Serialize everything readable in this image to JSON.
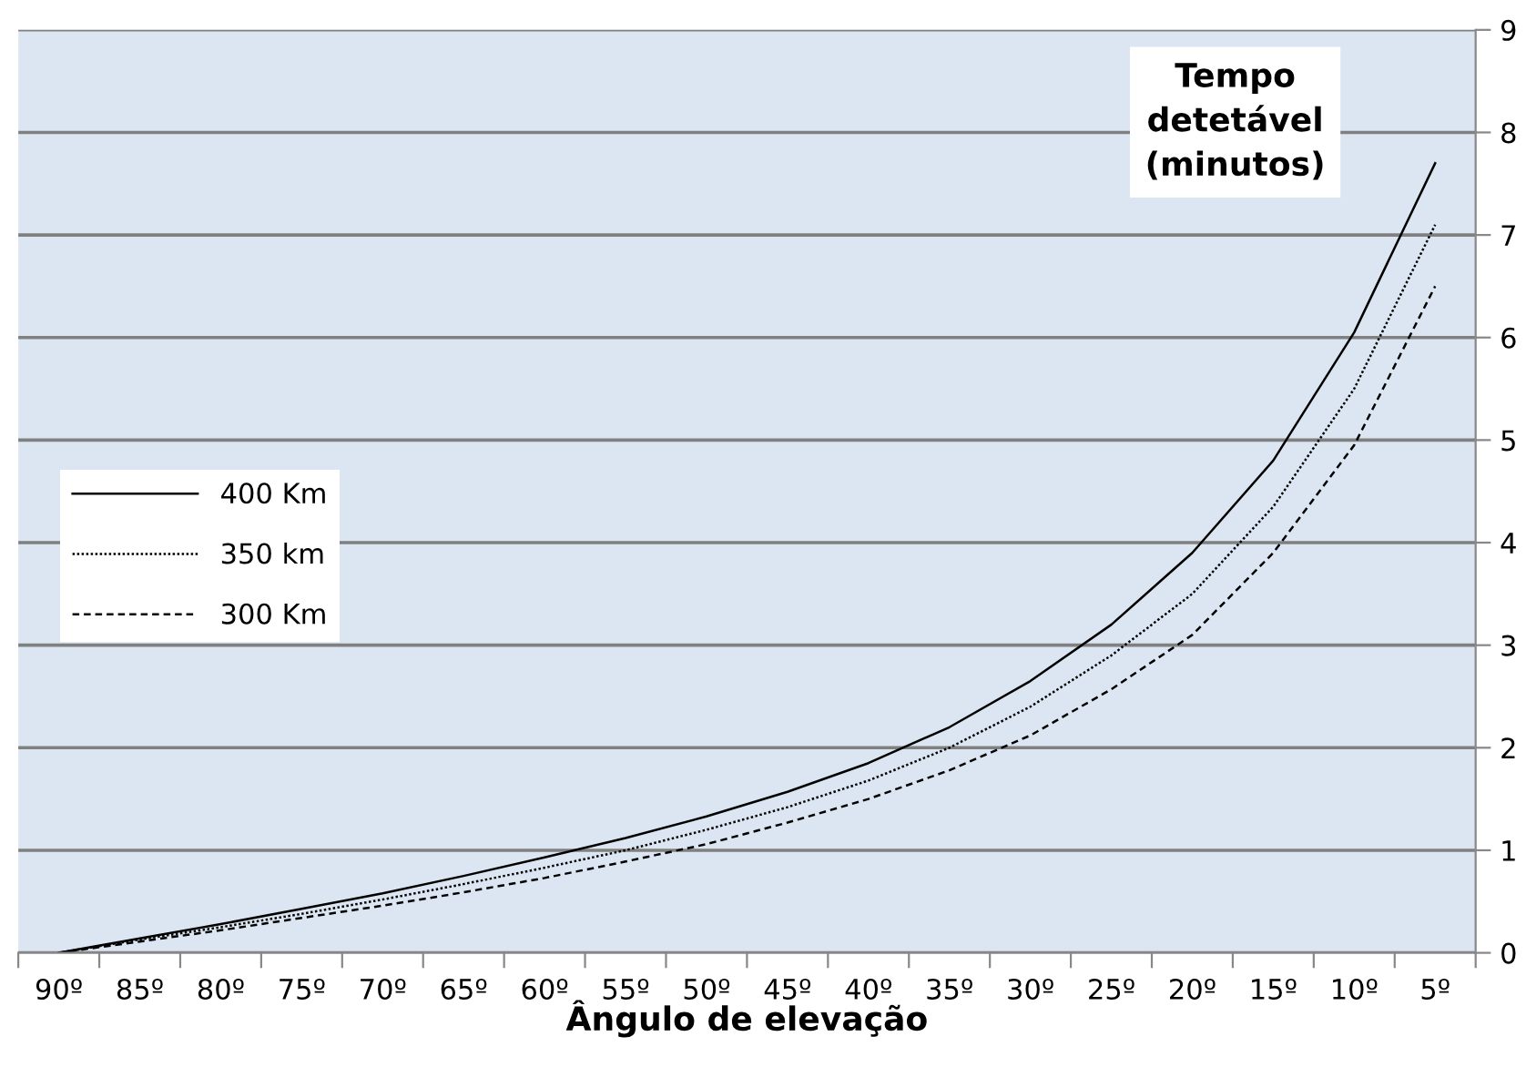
{
  "chart_data": {
    "type": "line",
    "xlabel": "Ângulo de elevação",
    "ylabel": "Tempo detetável (minutos)",
    "categories": [
      "90º",
      "85º",
      "80º",
      "75º",
      "70º",
      "65º",
      "60º",
      "55º",
      "50º",
      "45º",
      "40º",
      "35º",
      "30º",
      "25º",
      "20º",
      "15º",
      "10º",
      "5º"
    ],
    "series": [
      {
        "name": "400 Km",
        "color": "#000000",
        "line_style": "solid",
        "values": [
          0,
          0.14,
          0.28,
          0.43,
          0.58,
          0.75,
          0.93,
          1.12,
          1.33,
          1.57,
          1.85,
          2.2,
          2.65,
          3.2,
          3.9,
          4.8,
          6.05,
          7.7
        ]
      },
      {
        "name": "350 km",
        "color": "#000000",
        "line_style": "dotted",
        "values": [
          0,
          0.13,
          0.25,
          0.38,
          0.52,
          0.67,
          0.83,
          1.0,
          1.2,
          1.42,
          1.68,
          2.0,
          2.4,
          2.9,
          3.5,
          4.35,
          5.5,
          7.1
        ]
      },
      {
        "name": "300 Km",
        "color": "#000000",
        "line_style": "dashed",
        "values": [
          0,
          0.11,
          0.22,
          0.34,
          0.46,
          0.59,
          0.73,
          0.89,
          1.06,
          1.27,
          1.5,
          1.78,
          2.12,
          2.57,
          3.1,
          3.9,
          4.95,
          6.5
        ]
      }
    ],
    "ylim": [
      0,
      9
    ],
    "yticks": [
      0,
      1,
      2,
      3,
      4,
      5,
      6,
      7,
      8,
      9
    ],
    "grid": "y",
    "legend": "left",
    "marker": "none"
  }
}
